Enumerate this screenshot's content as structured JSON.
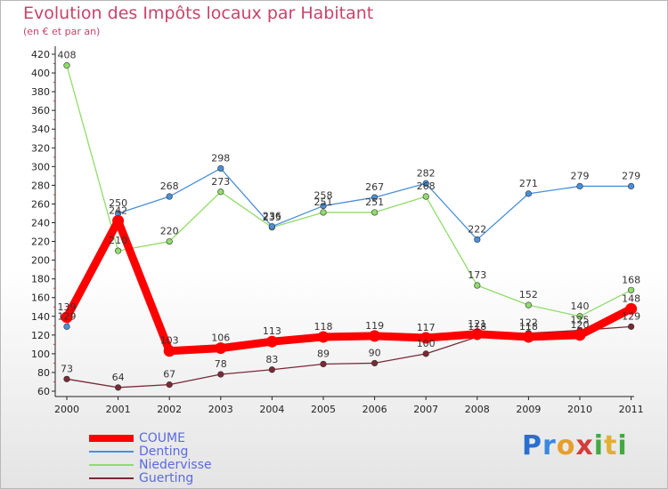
{
  "chart_data": {
    "type": "line",
    "title": "Evolution des Impôts locaux par Habitant",
    "subtitle": "(en € et par an)",
    "xlabel": "",
    "ylabel": "",
    "x": [
      "2000",
      "2001",
      "2002",
      "2003",
      "2004",
      "2005",
      "2006",
      "2007",
      "2008",
      "2009",
      "2010",
      "2011"
    ],
    "ylim": [
      60,
      420
    ],
    "yticks": [
      60,
      80,
      100,
      120,
      140,
      160,
      180,
      200,
      220,
      240,
      260,
      280,
      300,
      320,
      340,
      360,
      380,
      400,
      420
    ],
    "grid": false,
    "legend_position": "bottom-left",
    "series": [
      {
        "name": "COUME",
        "color": "#ff0000",
        "values": [
          139,
          242,
          103,
          106,
          113,
          118,
          119,
          117,
          121,
          118,
          120,
          148
        ]
      },
      {
        "name": "Denting",
        "color": "#4a90d8",
        "values": [
          129,
          250,
          268,
          298,
          236,
          258,
          267,
          282,
          222,
          271,
          279,
          279
        ]
      },
      {
        "name": "Niedervisse",
        "color": "#8fdc6a",
        "values": [
          408,
          210,
          220,
          273,
          235,
          251,
          251,
          268,
          173,
          152,
          140,
          168
        ]
      },
      {
        "name": "Guerting",
        "color": "#7a2a35",
        "values": [
          73,
          64,
          67,
          78,
          83,
          89,
          90,
          100,
          118,
          122,
          125,
          129
        ]
      }
    ]
  },
  "logo": {
    "letters": [
      "P",
      "r",
      "o",
      "x",
      "i",
      "t",
      "i"
    ]
  }
}
